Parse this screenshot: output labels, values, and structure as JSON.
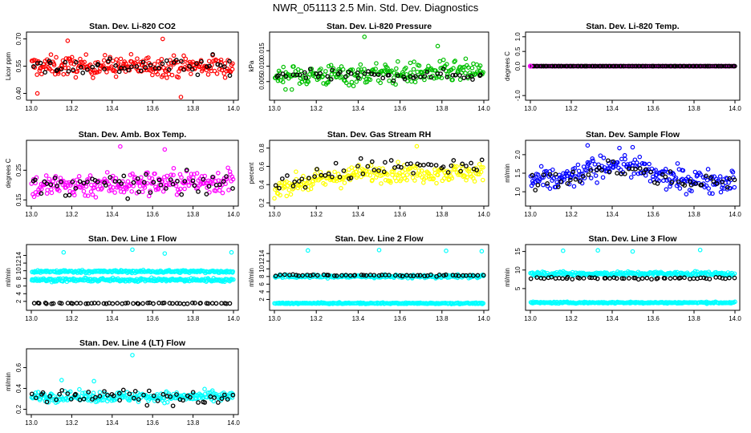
{
  "figure_title": "NWR_051113  2.5 Min. Std. Dev. Diagnostics",
  "chart_data": [
    {
      "type": "scatter",
      "title": "Stan. Dev. Li-820 CO2",
      "ylabel": "Licor ppm",
      "xlim": [
        13.0,
        14.0
      ],
      "ylim": [
        0.38,
        0.72
      ],
      "xticks": [
        "13.0",
        "13.2",
        "13.4",
        "13.6",
        "13.8",
        "14.0"
      ],
      "yticks": [
        "0.40",
        "0.55",
        "0.70"
      ],
      "color": "#ff0000",
      "bands": [
        {
          "center": 0.55,
          "spread": 0.04
        }
      ],
      "overlay": {
        "center": 0.55,
        "spread": 0.035
      },
      "outliers": [
        {
          "x": 13.18,
          "y": 0.69
        },
        {
          "x": 13.65,
          "y": 0.7
        },
        {
          "x": 13.74,
          "y": 0.38
        },
        {
          "x": 13.03,
          "y": 0.4
        }
      ]
    },
    {
      "type": "scatter",
      "title": "Stan. Dev. Li-820 Pressure",
      "ylabel": "kPa",
      "xlim": [
        13.0,
        14.0
      ],
      "ylim": [
        0.0,
        0.02
      ],
      "xticks": [
        "13.0",
        "13.2",
        "13.4",
        "13.6",
        "13.8",
        "14.0"
      ],
      "yticks": [
        "0.005",
        "0.010",
        "0.015"
      ],
      "color": "#00c000",
      "bands": [
        {
          "center": 0.0075,
          "spread": 0.0025,
          "trend": 0.0015
        }
      ],
      "overlay": {
        "center": 0.007,
        "spread": 0.0012
      },
      "outliers": [
        {
          "x": 13.43,
          "y": 0.0195
        },
        {
          "x": 13.78,
          "y": 0.0165
        }
      ]
    },
    {
      "type": "scatter",
      "title": "Stan. Dev. Li-820 Temp.",
      "ylabel": "degrees C",
      "xlim": [
        13.0,
        14.0
      ],
      "ylim": [
        -1.05,
        1.05
      ],
      "xticks": [
        "13.0",
        "13.2",
        "13.4",
        "13.6",
        "13.8",
        "14.0"
      ],
      "yticks": [
        "-1.0",
        "0.0",
        "0.5",
        "1.0"
      ],
      "color": "#ff00ff",
      "bands": [
        {
          "center": 0.0,
          "spread": 0.0
        }
      ],
      "overlay": {
        "center": 0.0,
        "spread": 0.0
      },
      "outliers": []
    },
    {
      "type": "scatter",
      "title": "Stan. Dev. Amb. Box Temp.",
      "ylabel": "degrees C",
      "xlim": [
        13.0,
        14.0
      ],
      "ylim": [
        0.14,
        0.34
      ],
      "xticks": [
        "13.0",
        "13.2",
        "13.4",
        "13.6",
        "13.8",
        "14.0"
      ],
      "yticks": [
        "0.15",
        "0.25"
      ],
      "color": "#ff00ff",
      "bands": [
        {
          "center": 0.205,
          "spread": 0.03,
          "trend": 0.02
        }
      ],
      "overlay": {
        "center": 0.2,
        "spread": 0.025
      },
      "outliers": [
        {
          "x": 13.44,
          "y": 0.33
        },
        {
          "x": 13.66,
          "y": 0.32
        }
      ]
    },
    {
      "type": "scatter",
      "title": "Stan. Dev. Gas Stream RH",
      "ylabel": "percent",
      "xlim": [
        13.0,
        14.0
      ],
      "ylim": [
        0.2,
        0.85
      ],
      "xticks": [
        "13.0",
        "13.2",
        "13.4",
        "13.6",
        "13.8",
        "14.0"
      ],
      "yticks": [
        "0.2",
        "0.4",
        "0.6",
        "0.8"
      ],
      "color": "#ffff00",
      "bands": [
        {
          "center": 0.45,
          "spread": 0.07,
          "trend": 0.16,
          "flatAfter": 0.45
        }
      ],
      "overlay": {
        "center": 0.5,
        "spread": 0.08
      },
      "outliers": [
        {
          "x": 13.0,
          "y": 0.25
        },
        {
          "x": 13.68,
          "y": 0.82
        }
      ]
    },
    {
      "type": "scatter",
      "title": "Stan. Dev. Sample Flow",
      "ylabel": "ml/min",
      "xlim": [
        13.0,
        14.0
      ],
      "ylim": [
        0.7,
        2.3
      ],
      "xticks": [
        "13.0",
        "13.2",
        "13.4",
        "13.6",
        "13.8",
        "14.0"
      ],
      "yticks": [
        "1.0",
        "1.5",
        "2.0"
      ],
      "color": "#0000ff",
      "bands": [
        {
          "center": 1.3,
          "spread": 0.22,
          "bump": [
            13.42,
            0.18,
            0.45
          ]
        }
      ],
      "overlay": {
        "center": 1.25,
        "spread": 0.18
      },
      "outliers": [
        {
          "x": 13.28,
          "y": 2.25
        },
        {
          "x": 13.5,
          "y": 2.2
        }
      ]
    },
    {
      "type": "scatter",
      "title": "Stan. Dev. Line 1 Flow",
      "ylabel": "ml/min",
      "xlim": [
        13.0,
        14.0
      ],
      "ylim": [
        0.5,
        16
      ],
      "xticks": [
        "13.0",
        "13.2",
        "13.4",
        "13.6",
        "13.8",
        "14.0"
      ],
      "yticks": [
        "2",
        "4",
        "6",
        "8",
        "10",
        "12",
        "14"
      ],
      "color": "#00ffff",
      "bands": [
        {
          "center": 9.8,
          "spread": 0.25
        },
        {
          "center": 7.6,
          "spread": 0.3
        }
      ],
      "overlay": {
        "center": 1.5,
        "spread": 0.12
      },
      "outliers": [
        {
          "x": 13.16,
          "y": 14.8
        },
        {
          "x": 13.5,
          "y": 15.5
        },
        {
          "x": 13.66,
          "y": 14.5
        },
        {
          "x": 13.99,
          "y": 14.8
        }
      ]
    },
    {
      "type": "scatter",
      "title": "Stan. Dev. Line 2 Flow",
      "ylabel": "ml/min",
      "xlim": [
        13.0,
        14.0
      ],
      "ylim": [
        0.0,
        15.5
      ],
      "xticks": [
        "13.0",
        "13.2",
        "13.4",
        "13.6",
        "13.8",
        "14.0"
      ],
      "yticks": [
        "2",
        "4",
        "6",
        "8",
        "10",
        "12",
        "14"
      ],
      "color": "#00ffff",
      "bands": [
        {
          "center": 8.0,
          "spread": 0.3
        },
        {
          "center": 1.0,
          "spread": 0.12
        }
      ],
      "overlay": {
        "center": 8.3,
        "spread": 0.15
      },
      "outliers": [
        {
          "x": 13.16,
          "y": 14.8
        },
        {
          "x": 13.5,
          "y": 14.9
        },
        {
          "x": 13.82,
          "y": 14.7
        },
        {
          "x": 13.99,
          "y": 14.6
        }
      ]
    },
    {
      "type": "scatter",
      "title": "Stan. Dev. Line 3 Flow",
      "ylabel": "ml/min",
      "xlim": [
        13.0,
        14.0
      ],
      "ylim": [
        0.0,
        16
      ],
      "xticks": [
        "13.0",
        "13.2",
        "13.4",
        "13.6",
        "13.8",
        "14.0"
      ],
      "yticks": [
        "5",
        "10",
        "15"
      ],
      "color": "#00ffff",
      "bands": [
        {
          "center": 9.0,
          "spread": 0.4
        },
        {
          "center": 1.2,
          "spread": 0.15
        }
      ],
      "overlay": {
        "center": 7.8,
        "spread": 0.2
      },
      "outliers": [
        {
          "x": 13.16,
          "y": 15.2
        },
        {
          "x": 13.33,
          "y": 15.3
        },
        {
          "x": 13.5,
          "y": 15.0
        },
        {
          "x": 13.83,
          "y": 15.4
        }
      ]
    },
    {
      "type": "scatter",
      "title": "Stan. Dev. Line 4 (LT) Flow",
      "ylabel": "ml/min",
      "xlim": [
        13.0,
        14.0
      ],
      "ylim": [
        0.18,
        0.75
      ],
      "xticks": [
        "13.0",
        "13.2",
        "13.4",
        "13.6",
        "13.8",
        "14.0"
      ],
      "yticks": [
        "0.2",
        "0.4",
        "0.6"
      ],
      "color": "#00ffff",
      "bands": [
        {
          "center": 0.32,
          "spread": 0.035
        }
      ],
      "overlay": {
        "center": 0.32,
        "spread": 0.05
      },
      "outliers": [
        {
          "x": 13.5,
          "y": 0.72
        },
        {
          "x": 13.15,
          "y": 0.48
        },
        {
          "x": 13.31,
          "y": 0.47
        }
      ]
    }
  ]
}
